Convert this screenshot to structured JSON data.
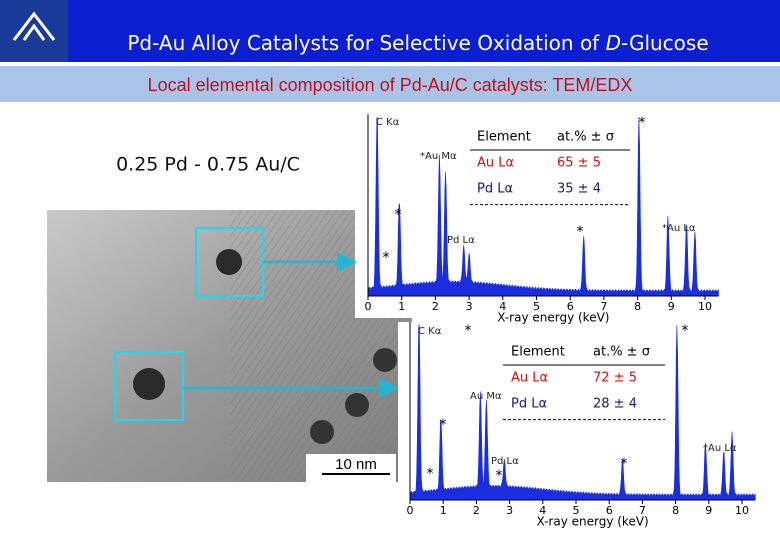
{
  "header": {
    "title_pre": "Pd-Au Alloy Catalysts for Selective Oxidation of ",
    "title_italic": "D",
    "title_post": "-Glucose",
    "subtitle": "Local elemental composition of Pd-Au/C catalysts: TEM/EDX"
  },
  "sample_label": "0.25 Pd - 0.75 Au/C",
  "tem": {
    "scale_bar": "10 nm"
  },
  "marker": "*",
  "spectra": [
    {
      "x_label": "X-ray energy (keV)",
      "x_ticks": [
        0,
        1,
        2,
        3,
        4,
        5,
        6,
        7,
        8,
        9,
        10
      ],
      "peak_labels": {
        "c_ka": "C Kα",
        "au_ma": "*Au Mα",
        "pd_la": "Pd Lα",
        "au_la": "*Au Lα"
      },
      "table": {
        "header": [
          "Element",
          "at.% ± σ"
        ],
        "rows": [
          [
            "Au Lα",
            "65 ± 5"
          ],
          [
            "Pd Lα",
            "35 ± 4"
          ]
        ]
      }
    },
    {
      "x_label": "X-ray energy (keV)",
      "x_ticks": [
        0,
        1,
        2,
        3,
        4,
        5,
        6,
        7,
        8,
        9,
        10
      ],
      "peak_labels": {
        "c_ka": "C Kα",
        "au_ma": "Au Mα",
        "pd_la": "Pd Lα",
        "au_la": "*Au Lα"
      },
      "table": {
        "header": [
          "Element",
          "at.% ± σ"
        ],
        "rows": [
          [
            "Au Lα",
            "72 ± 5"
          ],
          [
            "Pd Lα",
            "28 ± 4"
          ]
        ]
      }
    }
  ]
}
